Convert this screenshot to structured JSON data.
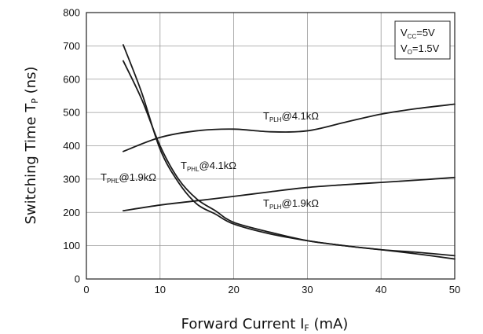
{
  "chart_data": {
    "type": "line",
    "title": "",
    "xlabel": "Forward Current I",
    "xlabel_sub": "F",
    "xlabel_unit": " (mA)",
    "ylabel": "Switching Time T",
    "ylabel_sub": "P",
    "ylabel_unit": " (ns)",
    "xlim": [
      0,
      50
    ],
    "ylim": [
      0,
      800
    ],
    "xticks": [
      "0",
      "10",
      "20",
      "30",
      "40",
      "50"
    ],
    "yticks": [
      "0",
      "100",
      "200",
      "300",
      "400",
      "500",
      "600",
      "700",
      "800"
    ],
    "grid": true,
    "conditions": [
      {
        "main": "V",
        "sub": "CC",
        "rest": "=5V"
      },
      {
        "main": "V",
        "sub": "O",
        "rest": "=1.5V"
      }
    ],
    "series": [
      {
        "name": "T_PLH@4.1kΩ",
        "label_main": "T",
        "label_sub": "PLH",
        "label_rest": "@4.1kΩ",
        "x": [
          5,
          10,
          15,
          20,
          25,
          30,
          35,
          40,
          45,
          50
        ],
        "y": [
          383,
          425,
          445,
          450,
          442,
          445,
          470,
          495,
          512,
          525
        ]
      },
      {
        "name": "T_PLH@1.9kΩ",
        "label_main": "T",
        "label_sub": "PLH",
        "label_rest": "@1.9kΩ",
        "x": [
          5,
          10,
          15,
          20,
          25,
          30,
          35,
          40,
          45,
          50
        ],
        "y": [
          205,
          222,
          235,
          248,
          262,
          275,
          283,
          290,
          297,
          305
        ]
      },
      {
        "name": "T_PHL@1.9kΩ",
        "label_main": "T",
        "label_sub": "PHL",
        "label_rest": "@1.9kΩ",
        "x": [
          5,
          7.5,
          10,
          12.5,
          15,
          17.5,
          20,
          25,
          30,
          35,
          40,
          45,
          50
        ],
        "y": [
          655,
          540,
          400,
          300,
          240,
          205,
          170,
          140,
          115,
          100,
          88,
          75,
          60
        ]
      },
      {
        "name": "T_PHL@4.1kΩ",
        "label_main": "T",
        "label_sub": "PHL",
        "label_rest": "@4.1kΩ",
        "x": [
          5,
          7.5,
          10,
          12.5,
          15,
          17.5,
          20,
          25,
          30,
          35,
          40,
          45,
          50
        ],
        "y": [
          703,
          560,
          390,
          290,
          225,
          195,
          165,
          135,
          115,
          100,
          88,
          80,
          70
        ]
      }
    ]
  }
}
